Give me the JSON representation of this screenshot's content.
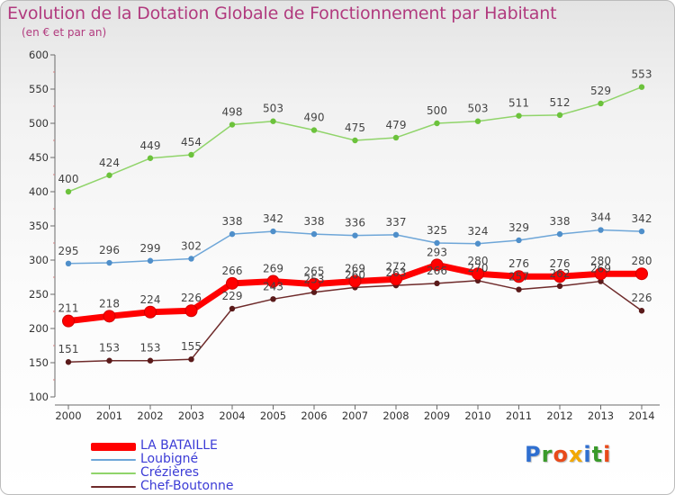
{
  "header": {
    "title": "Evolution de la Dotation Globale de Fonctionnement par Habitant",
    "subtitle": "(en € et par an)"
  },
  "logo": {
    "text": "Proxiti",
    "colors": [
      "#2f6fd0",
      "#3a9a2a",
      "#e84a1a",
      "#f2a800",
      "#2f6fd0",
      "#3a9a2a",
      "#e84a1a"
    ]
  },
  "chart_data": {
    "type": "line",
    "categories": [
      "2000",
      "2001",
      "2002",
      "2003",
      "2004",
      "2005",
      "2006",
      "2007",
      "2008",
      "2009",
      "2010",
      "2011",
      "2012",
      "2013",
      "2014"
    ],
    "ylim": [
      100,
      600
    ],
    "yticks": [
      100,
      150,
      200,
      250,
      300,
      350,
      400,
      450,
      500,
      550,
      600
    ],
    "grid": false,
    "legend_position": "bottom-left",
    "series": [
      {
        "name": "Crézières",
        "color": "#90d46a",
        "marker": "#6cc23c",
        "emphasis": false,
        "values": [
          400,
          424,
          449,
          454,
          498,
          503,
          490,
          475,
          479,
          500,
          503,
          511,
          512,
          529,
          553
        ]
      },
      {
        "name": "Loubigné",
        "color": "#6ea6d8",
        "marker": "#4f8fca",
        "emphasis": false,
        "values": [
          295,
          296,
          299,
          302,
          338,
          342,
          338,
          336,
          337,
          325,
          324,
          329,
          338,
          344,
          342
        ]
      },
      {
        "name": "Chef-Boutonne",
        "color": "#6e2a2a",
        "marker": "#5a1a1a",
        "emphasis": false,
        "values": [
          151,
          153,
          153,
          155,
          229,
          243,
          253,
          260,
          263,
          266,
          270,
          257,
          262,
          269,
          226
        ]
      },
      {
        "name": "LA BATAILLE",
        "color": "#ff0000",
        "marker": "#ff0000",
        "emphasis": true,
        "values": [
          211,
          218,
          224,
          226,
          266,
          269,
          265,
          269,
          272,
          293,
          280,
          276,
          276,
          280,
          280
        ]
      }
    ],
    "legend_order": [
      "LA BATAILLE",
      "Loubigné",
      "Crézières",
      "Chef-Boutonne"
    ]
  }
}
